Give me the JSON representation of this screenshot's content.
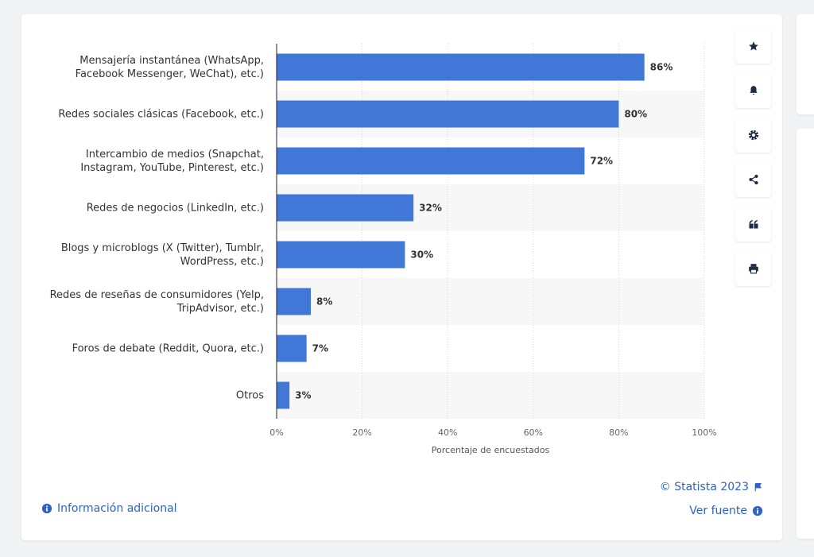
{
  "chart_data": {
    "type": "bar",
    "orientation": "horizontal",
    "categories": [
      "Mensajería instantánea (WhatsApp, Facebook Messenger, WeChat), etc.)",
      "Redes sociales clásicas (Facebook, etc.)",
      "Intercambio de medios (Snapchat, Instagram, YouTube, Pinterest, etc.)",
      "Redes de negocios (LinkedIn, etc.)",
      "Blogs y microblogs (X (Twitter), Tumblr, WordPress, etc.)",
      "Redes de reseñas de consumidores (Yelp, TripAdvisor, etc.)",
      "Foros de debate (Reddit, Quora, etc.)",
      "Otros"
    ],
    "values": [
      86,
      80,
      72,
      32,
      30,
      8,
      7,
      3
    ],
    "value_labels": [
      "86%",
      "80%",
      "72%",
      "32%",
      "30%",
      "8%",
      "7%",
      "3%"
    ],
    "color": "#4178d8",
    "xlabel": "Porcentaje de encuestados",
    "xlim": [
      0,
      100
    ],
    "xticks": [
      {
        "value": 0,
        "label": "0%"
      },
      {
        "value": 20,
        "label": "20%"
      },
      {
        "value": 40,
        "label": "40%"
      },
      {
        "value": 60,
        "label": "60%"
      },
      {
        "value": 80,
        "label": "80%"
      },
      {
        "value": 100,
        "label": "100%"
      }
    ],
    "grid": true,
    "credit": "© Statista 2023",
    "more_info": "Información adicional",
    "source_link": "Ver fuente"
  }
}
